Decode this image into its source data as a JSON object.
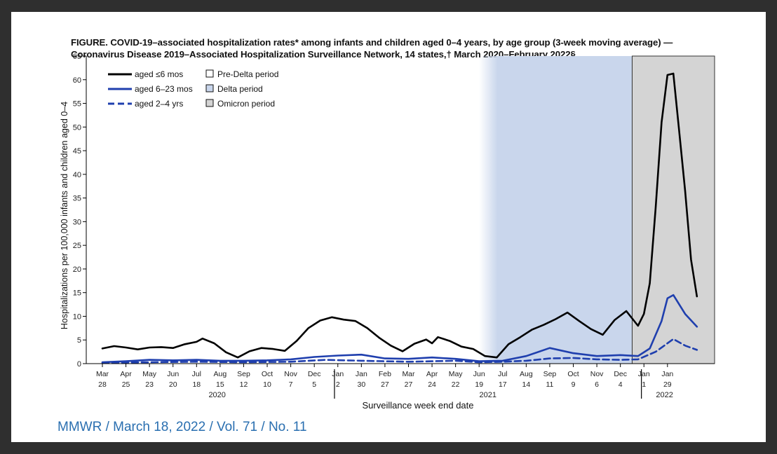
{
  "title_line1": "FIGURE. COVID-19–associated hospitalization rates* among infants and children aged 0–4 years, by age group (3-week moving average) —",
  "title_line2": "Coronavirus Disease 2019–Associated Hospitalization Surveillance Network, 14 states,† March 2020–February 2022§",
  "citation": "MMWR / March 18, 2022 / Vol. 71 / No. 11",
  "colors": {
    "panel_bg": "#ffffff",
    "outer_bg": "#2f2f2f",
    "line_infants": "#000000",
    "line_blue": "#1f3fae",
    "delta_fill": "#c9d6ec",
    "omicron_fill": "#d4d4d4"
  },
  "chart_data": {
    "type": "line",
    "title": "FIGURE. COVID-19–associated hospitalization rates* among infants and children aged 0–4 years, by age group (3-week moving average) — Coronavirus Disease 2019–Associated Hospitalization Surveillance Network, 14 states,† March 2020–February 2022§",
    "xlabel": "Surveillance week end date",
    "ylabel": "Hospitalizations per 100,000 infants and children aged 0–4",
    "ylim": [
      0,
      65
    ],
    "yticks": [
      0,
      5,
      10,
      15,
      20,
      25,
      30,
      35,
      40,
      45,
      50,
      55,
      60,
      65
    ],
    "xlim": [
      "2020-03-28",
      "2022-02-19"
    ],
    "grid": false,
    "legend_position": "top-left",
    "x_ticks": [
      {
        "date": "2020-03-28",
        "month": "Mar",
        "day": "28"
      },
      {
        "date": "2020-04-25",
        "month": "Apr",
        "day": "25"
      },
      {
        "date": "2020-05-23",
        "month": "May",
        "day": "23"
      },
      {
        "date": "2020-06-20",
        "month": "Jun",
        "day": "20"
      },
      {
        "date": "2020-07-18",
        "month": "Jul",
        "day": "18"
      },
      {
        "date": "2020-08-15",
        "month": "Aug",
        "day": "15"
      },
      {
        "date": "2020-09-12",
        "month": "Sep",
        "day": "12"
      },
      {
        "date": "2020-10-10",
        "month": "Oct",
        "day": "10"
      },
      {
        "date": "2020-11-07",
        "month": "Nov",
        "day": "7"
      },
      {
        "date": "2020-12-05",
        "month": "Dec",
        "day": "5"
      },
      {
        "date": "2021-01-02",
        "month": "Jan",
        "day": "2"
      },
      {
        "date": "2021-01-30",
        "month": "Jan",
        "day": "30"
      },
      {
        "date": "2021-02-27",
        "month": "Feb",
        "day": "27"
      },
      {
        "date": "2021-03-27",
        "month": "Mar",
        "day": "27"
      },
      {
        "date": "2021-04-24",
        "month": "Apr",
        "day": "24"
      },
      {
        "date": "2021-05-22",
        "month": "May",
        "day": "22"
      },
      {
        "date": "2021-06-19",
        "month": "Jun",
        "day": "19"
      },
      {
        "date": "2021-07-17",
        "month": "Jul",
        "day": "17"
      },
      {
        "date": "2021-08-14",
        "month": "Aug",
        "day": "14"
      },
      {
        "date": "2021-09-11",
        "month": "Sep",
        "day": "11"
      },
      {
        "date": "2021-10-09",
        "month": "Oct",
        "day": "9"
      },
      {
        "date": "2021-11-06",
        "month": "Nov",
        "day": "6"
      },
      {
        "date": "2021-12-04",
        "month": "Dec",
        "day": "4"
      },
      {
        "date": "2022-01-01",
        "month": "Jan",
        "day": "1"
      },
      {
        "date": "2022-01-29",
        "month": "Jan",
        "day": "29"
      }
    ],
    "year_labels": [
      {
        "label": "2020",
        "start": "2020-03-28",
        "end": "2020-12-26"
      },
      {
        "label": "2021",
        "start": "2021-01-02",
        "end": "2021-12-25"
      },
      {
        "label": "2022",
        "start": "2022-01-01",
        "end": "2022-02-19"
      }
    ],
    "year_dividers": [
      "2020-12-29",
      "2021-12-29"
    ],
    "periods": [
      {
        "name": "Pre-Delta period",
        "start": "2020-03-28",
        "end": "2021-06-19"
      },
      {
        "name": "Delta period",
        "start": "2021-06-19",
        "end": "2021-12-18"
      },
      {
        "name": "Omicron period",
        "start": "2021-12-18",
        "end": "2022-02-19"
      }
    ],
    "series": [
      {
        "name": "aged ≤6 mos",
        "style": "solid",
        "color": "#000000",
        "points": [
          [
            "2020-03-28",
            3.2
          ],
          [
            "2020-04-11",
            3.7
          ],
          [
            "2020-04-25",
            3.4
          ],
          [
            "2020-05-09",
            3.0
          ],
          [
            "2020-05-23",
            3.4
          ],
          [
            "2020-06-06",
            3.5
          ],
          [
            "2020-06-20",
            3.3
          ],
          [
            "2020-07-04",
            4.1
          ],
          [
            "2020-07-18",
            4.6
          ],
          [
            "2020-07-25",
            5.3
          ],
          [
            "2020-08-08",
            4.3
          ],
          [
            "2020-08-22",
            2.4
          ],
          [
            "2020-09-05",
            1.3
          ],
          [
            "2020-09-19",
            2.6
          ],
          [
            "2020-10-03",
            3.3
          ],
          [
            "2020-10-17",
            3.1
          ],
          [
            "2020-10-31",
            2.7
          ],
          [
            "2020-11-14",
            4.8
          ],
          [
            "2020-11-28",
            7.5
          ],
          [
            "2020-12-12",
            9.1
          ],
          [
            "2020-12-26",
            9.8
          ],
          [
            "2021-01-09",
            9.3
          ],
          [
            "2021-01-23",
            9.0
          ],
          [
            "2021-02-06",
            7.5
          ],
          [
            "2021-02-20",
            5.5
          ],
          [
            "2021-03-06",
            3.8
          ],
          [
            "2021-03-20",
            2.6
          ],
          [
            "2021-04-03",
            4.2
          ],
          [
            "2021-04-17",
            5.1
          ],
          [
            "2021-04-24",
            4.3
          ],
          [
            "2021-05-01",
            5.6
          ],
          [
            "2021-05-15",
            4.8
          ],
          [
            "2021-05-29",
            3.6
          ],
          [
            "2021-06-12",
            3.1
          ],
          [
            "2021-06-26",
            1.6
          ],
          [
            "2021-07-10",
            1.3
          ],
          [
            "2021-07-24",
            4.1
          ],
          [
            "2021-08-07",
            5.6
          ],
          [
            "2021-08-21",
            7.2
          ],
          [
            "2021-09-04",
            8.2
          ],
          [
            "2021-09-18",
            9.4
          ],
          [
            "2021-10-02",
            10.8
          ],
          [
            "2021-10-16",
            9.0
          ],
          [
            "2021-10-30",
            7.3
          ],
          [
            "2021-11-13",
            6.1
          ],
          [
            "2021-11-27",
            9.2
          ],
          [
            "2021-12-11",
            11.1
          ],
          [
            "2021-12-25",
            8.0
          ],
          [
            "2022-01-01",
            10.5
          ],
          [
            "2022-01-08",
            17.0
          ],
          [
            "2022-01-15",
            33.0
          ],
          [
            "2022-01-22",
            51.0
          ],
          [
            "2022-01-29",
            61.0
          ],
          [
            "2022-02-05",
            61.3
          ],
          [
            "2022-02-12",
            49.0
          ],
          [
            "2022-02-19",
            36.5
          ],
          [
            "2022-02-26",
            22.0
          ],
          [
            "2022-03-05",
            14.2
          ]
        ]
      },
      {
        "name": "aged 6–23 mos",
        "style": "solid",
        "color": "#1f3fae",
        "points": [
          [
            "2020-03-28",
            0.3
          ],
          [
            "2020-04-25",
            0.5
          ],
          [
            "2020-05-23",
            0.8
          ],
          [
            "2020-06-20",
            0.7
          ],
          [
            "2020-07-18",
            0.8
          ],
          [
            "2020-08-15",
            0.6
          ],
          [
            "2020-09-12",
            0.6
          ],
          [
            "2020-10-10",
            0.7
          ],
          [
            "2020-11-07",
            0.9
          ],
          [
            "2020-12-05",
            1.4
          ],
          [
            "2021-01-02",
            1.7
          ],
          [
            "2021-01-30",
            1.9
          ],
          [
            "2021-02-27",
            1.1
          ],
          [
            "2021-03-27",
            1.0
          ],
          [
            "2021-04-24",
            1.3
          ],
          [
            "2021-05-22",
            1.0
          ],
          [
            "2021-06-19",
            0.5
          ],
          [
            "2021-07-17",
            0.6
          ],
          [
            "2021-08-14",
            1.6
          ],
          [
            "2021-09-11",
            3.3
          ],
          [
            "2021-10-09",
            2.2
          ],
          [
            "2021-11-06",
            1.6
          ],
          [
            "2021-12-04",
            1.8
          ],
          [
            "2021-12-25",
            1.6
          ],
          [
            "2022-01-08",
            3.2
          ],
          [
            "2022-01-22",
            9.0
          ],
          [
            "2022-01-29",
            13.8
          ],
          [
            "2022-02-05",
            14.5
          ],
          [
            "2022-02-19",
            10.5
          ],
          [
            "2022-03-05",
            7.8
          ]
        ]
      },
      {
        "name": "aged 2–4 yrs",
        "style": "dashed",
        "color": "#1f3fae",
        "points": [
          [
            "2020-03-28",
            0.2
          ],
          [
            "2020-05-23",
            0.3
          ],
          [
            "2020-07-18",
            0.4
          ],
          [
            "2020-09-12",
            0.3
          ],
          [
            "2020-11-07",
            0.4
          ],
          [
            "2020-12-19",
            0.8
          ],
          [
            "2021-01-30",
            0.6
          ],
          [
            "2021-03-27",
            0.4
          ],
          [
            "2021-05-22",
            0.6
          ],
          [
            "2021-06-19",
            0.3
          ],
          [
            "2021-07-17",
            0.4
          ],
          [
            "2021-08-14",
            0.6
          ],
          [
            "2021-09-11",
            1.1
          ],
          [
            "2021-10-09",
            1.2
          ],
          [
            "2021-11-06",
            0.9
          ],
          [
            "2021-12-04",
            0.8
          ],
          [
            "2021-12-25",
            0.9
          ],
          [
            "2022-01-15",
            2.5
          ],
          [
            "2022-02-05",
            5.2
          ],
          [
            "2022-02-19",
            3.8
          ],
          [
            "2022-03-05",
            2.9
          ]
        ]
      }
    ]
  }
}
